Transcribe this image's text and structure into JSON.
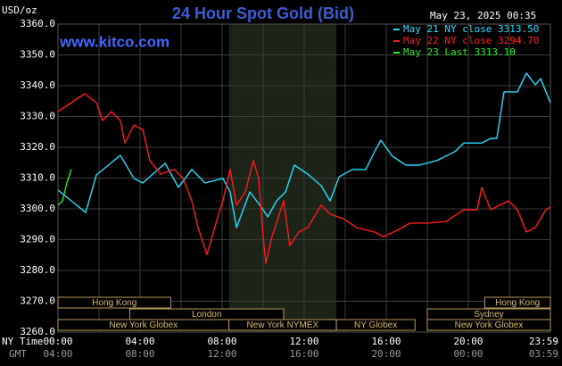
{
  "chart_data": {
    "type": "line",
    "title": "24 Hour Spot Gold (Bid)",
    "site": "www.kitco.com",
    "y_label": "USD/oz",
    "timestamp": "May 23, 2025 00:35",
    "x_label": "NY Time",
    "x2_label": "GMT",
    "xlim": [
      0,
      24
    ],
    "ylim": [
      3260,
      3360
    ],
    "yticks": [
      {
        "value": 3260,
        "label": "3260.0"
      },
      {
        "value": 3270,
        "label": "3270.0"
      },
      {
        "value": 3280,
        "label": "3280.0"
      },
      {
        "value": 3290,
        "label": "3290.0"
      },
      {
        "value": 3300,
        "label": "3300.0"
      },
      {
        "value": 3310,
        "label": "3310.0"
      },
      {
        "value": 3320,
        "label": "3320.0"
      },
      {
        "value": 3330,
        "label": "3330.0"
      },
      {
        "value": 3340,
        "label": "3340.0"
      },
      {
        "value": 3350,
        "label": "3350.0"
      },
      {
        "value": 3360,
        "label": "3360.0"
      }
    ],
    "xticks": [
      {
        "value": 0,
        "label": "00:00"
      },
      {
        "value": 4,
        "label": "04:00"
      },
      {
        "value": 8,
        "label": "08:00"
      },
      {
        "value": 12,
        "label": "12:00"
      },
      {
        "value": 16,
        "label": "16:00"
      },
      {
        "value": 20,
        "label": "20:00"
      },
      {
        "value": 23.98,
        "label": "23:59"
      }
    ],
    "x2_labels": [
      "04:00",
      "08:00",
      "12:00",
      "16:00",
      "20:00",
      "00:00",
      "03:59"
    ],
    "xgrid": [
      2,
      4,
      6,
      8,
      10,
      12,
      14,
      16,
      18,
      20,
      22
    ],
    "grid": true,
    "highlight": [
      8.33,
      13.57
    ],
    "sessions": [
      {
        "name": "Hong Kong",
        "start": 0,
        "end": 5.5,
        "row": 0
      },
      {
        "name": "London",
        "start": 3.5,
        "end": 11,
        "row": 1
      },
      {
        "name": "New York Globex",
        "start": 0,
        "end": 8.33,
        "row": 2
      },
      {
        "name": "New York NYMEX",
        "start": 8.33,
        "end": 13.57,
        "row": 2
      },
      {
        "name": "NY Globex",
        "start": 13.57,
        "end": 17.4,
        "row": 2
      },
      {
        "name": "Hong Kong",
        "start": 20.8,
        "end": 24,
        "row": 0
      },
      {
        "name": "Sydney",
        "start": 18,
        "end": 24,
        "row": 1
      },
      {
        "name": "New York Globex",
        "start": 18,
        "end": 24,
        "row": 2
      }
    ],
    "series": [
      {
        "name": "May 21 NY close 3313.50",
        "color": "#22ddff",
        "x": [
          0,
          0.65,
          1.35,
          1.87,
          3.04,
          3.7,
          4.13,
          5.22,
          5.87,
          6.52,
          7.17,
          8.04,
          8.39,
          8.7,
          9.35,
          10.0,
          10.22,
          10.65,
          11.09,
          11.52,
          12.17,
          12.83,
          13.26,
          13.7,
          14.35,
          15.0,
          15.43,
          15.74,
          16.3,
          16.96,
          17.61,
          18.48,
          19.35,
          19.78,
          20.65,
          21.09,
          21.39,
          21.74,
          22.39,
          22.83,
          23.26,
          23.52,
          24
        ],
        "values": [
          3306.1,
          3302.6,
          3298.8,
          3311.0,
          3317.4,
          3309.9,
          3308.4,
          3314.8,
          3307.0,
          3312.8,
          3308.4,
          3309.9,
          3305.5,
          3293.9,
          3305.5,
          3299.7,
          3297.4,
          3302.6,
          3305.5,
          3314.2,
          3311.3,
          3307.5,
          3302.6,
          3310.4,
          3312.8,
          3312.8,
          3318.6,
          3322.3,
          3317.1,
          3314.2,
          3314.2,
          3315.7,
          3318.6,
          3321.4,
          3321.4,
          3322.9,
          3322.9,
          3338.0,
          3338.0,
          3344.1,
          3340.3,
          3342.3,
          3334.5
        ]
      },
      {
        "name": "May 22 NY close 3294.70",
        "color": "#ff1a1a",
        "x": [
          0,
          0.65,
          1.3,
          1.87,
          2.17,
          2.61,
          3.04,
          3.26,
          3.7,
          4.13,
          4.48,
          5.0,
          5.65,
          6.09,
          6.52,
          6.83,
          7.26,
          7.83,
          8.04,
          8.39,
          8.7,
          9.13,
          9.52,
          9.78,
          10.0,
          10.13,
          10.43,
          11.0,
          11.3,
          11.74,
          12.17,
          12.83,
          13.26,
          13.91,
          14.57,
          15.43,
          15.87,
          16.52,
          17.17,
          18.04,
          18.91,
          19.78,
          20.43,
          20.65,
          21.09,
          21.96,
          22.39,
          22.83,
          23.26,
          23.78,
          24
        ],
        "values": [
          3331.6,
          3334.5,
          3337.4,
          3334.5,
          3328.7,
          3331.6,
          3328.7,
          3321.4,
          3327.2,
          3325.8,
          3315.7,
          3311.3,
          3312.8,
          3309.9,
          3302.6,
          3293.9,
          3285.2,
          3298.3,
          3302.6,
          3312.8,
          3301.2,
          3305.5,
          3315.7,
          3309.9,
          3291.0,
          3282.3,
          3291.0,
          3302.6,
          3288.1,
          3292.5,
          3293.9,
          3301.2,
          3298.3,
          3296.8,
          3293.9,
          3292.5,
          3291.0,
          3293.0,
          3295.4,
          3295.4,
          3295.9,
          3299.7,
          3299.7,
          3307.0,
          3299.7,
          3302.6,
          3299.7,
          3292.5,
          3293.9,
          3299.7,
          3300.6
        ]
      },
      {
        "name": "May 23 Last 3313.10",
        "color": "#22ee22",
        "x": [
          0,
          0.22,
          0.43,
          0.65
        ],
        "values": [
          3301.2,
          3302.6,
          3308.4,
          3312.8
        ]
      }
    ]
  }
}
